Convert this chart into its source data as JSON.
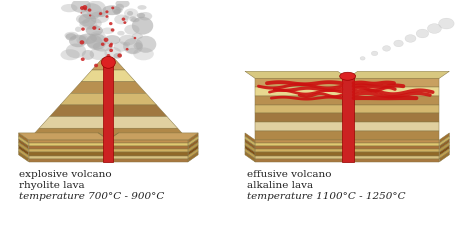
{
  "background_color": "#ffffff",
  "left_volcano": {
    "label_line1": "explosive volcano",
    "label_line2": "rhyolite lava",
    "label_line3": "temperature 700°C - 900°C"
  },
  "right_volcano": {
    "label_line1": "effusive volcano",
    "label_line2": "alkaline lava",
    "label_line3": "temperature 1100°C - 1250°C"
  },
  "text_color": "#222222",
  "font_size": 7.5,
  "lava_color": "#cc1111",
  "layer_colors_top": [
    "#c8a060",
    "#e8d890",
    "#b89050",
    "#e0d0a0",
    "#b08040",
    "#d8c890",
    "#c09060"
  ],
  "layer_colors_front": [
    "#c8a060",
    "#e8d080",
    "#b08040",
    "#e0c880",
    "#a07030",
    "#d0b870",
    "#c09060"
  ],
  "layer_colors_side": [
    "#b89050",
    "#d8c070",
    "#a07830",
    "#d0b860",
    "#906820",
    "#c0a850",
    "#b08040"
  ],
  "smoke_gray": "#aaaaaa",
  "lava_dark": "#aa0000"
}
